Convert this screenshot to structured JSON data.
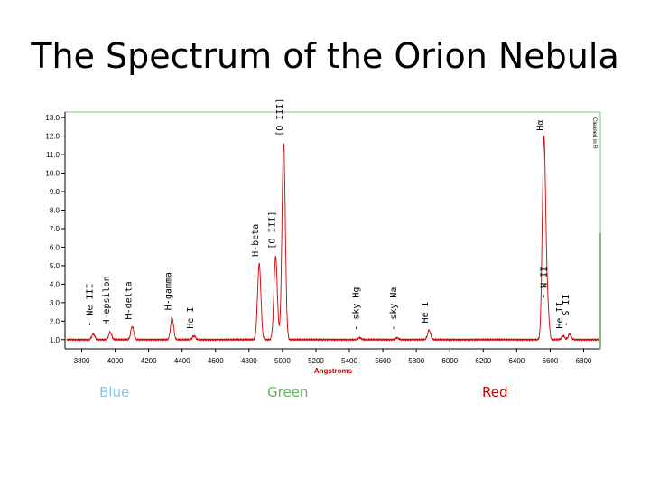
{
  "slide": {
    "title": "The Spectrum of the Orion Nebula"
  },
  "bands": {
    "blue": {
      "label": "Blue",
      "color": "#8fc3e6"
    },
    "green": {
      "label": "Green",
      "color": "#5cb85c"
    },
    "red": {
      "label": "Red",
      "color": "#cc0000"
    }
  },
  "chart_data": {
    "type": "line",
    "xlabel": "Angstroms",
    "ylabel": "",
    "corner_note": "Cleaned in R",
    "xlim": [
      3700,
      6900
    ],
    "ylim": [
      0.5,
      13.3
    ],
    "xticks": [
      3800,
      4000,
      4200,
      4400,
      4600,
      4800,
      5000,
      5200,
      5400,
      5600,
      5800,
      6000,
      6200,
      6400,
      6600,
      6800
    ],
    "yticks": [
      1.0,
      2.0,
      3.0,
      4.0,
      5.0,
      6.0,
      7.0,
      8.0,
      9.0,
      10.0,
      11.0,
      12.0,
      13.0
    ],
    "line_color": "#d40000",
    "frame_color": "#80c080",
    "continuum": 1.0,
    "peaks": [
      {
        "x": 3869,
        "height": 1.3,
        "label": "Ne III"
      },
      {
        "x": 3970,
        "height": 1.4,
        "label": "H-epsilon"
      },
      {
        "x": 4102,
        "height": 1.7,
        "label": "H-delta"
      },
      {
        "x": 4340,
        "height": 2.2,
        "label": "H-gamma"
      },
      {
        "x": 4471,
        "height": 1.2,
        "label": "He I"
      },
      {
        "x": 4861,
        "height": 5.1,
        "label": "H-beta"
      },
      {
        "x": 4959,
        "height": 5.5,
        "label": "[O III]"
      },
      {
        "x": 5007,
        "height": 11.6,
        "label": "[O III]"
      },
      {
        "x": 5461,
        "height": 1.1,
        "label": "sky Hg"
      },
      {
        "x": 5685,
        "height": 1.1,
        "label": "sky Na"
      },
      {
        "x": 5876,
        "height": 1.5,
        "label": "He I"
      },
      {
        "x": 6563,
        "height": 11.9,
        "label": "Hα"
      },
      {
        "x": 6584,
        "height": 2.8,
        "label": "N II"
      },
      {
        "x": 6678,
        "height": 1.2,
        "label": "He II"
      },
      {
        "x": 6717,
        "height": 1.3,
        "label": "S II"
      }
    ]
  }
}
